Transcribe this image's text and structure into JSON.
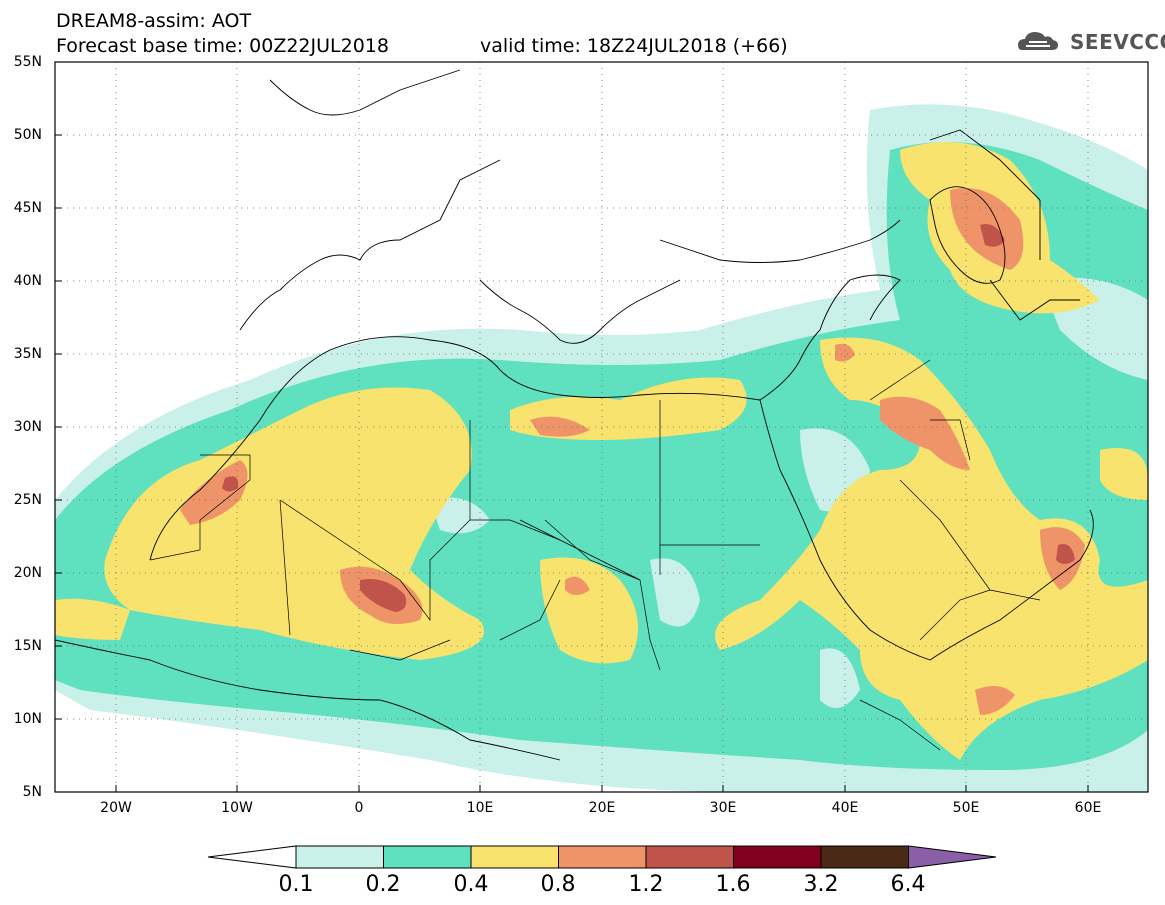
{
  "header": {
    "line1": "DREAM8-assim: AOT",
    "line2": "Forecast base time: 00Z22JUL2018",
    "valid": "valid time: 18Z24JUL2018 (+66)"
  },
  "logo": {
    "name": "SEEVCCC",
    "icon": "cloud-icon"
  },
  "map": {
    "lat_labels": [
      "55N",
      "50N",
      "45N",
      "40N",
      "35N",
      "30N",
      "25N",
      "20N",
      "15N",
      "10N",
      "5N"
    ],
    "lon_labels": [
      "20W",
      "10W",
      "0",
      "10E",
      "20E",
      "30E",
      "40E",
      "50E",
      "60E"
    ],
    "lon_range": [
      -25,
      65
    ],
    "lat_range": [
      5,
      55
    ]
  },
  "colorbar": {
    "labels": [
      "0.1",
      "0.2",
      "0.4",
      "0.8",
      "1.2",
      "1.6",
      "3.2",
      "6.4"
    ],
    "colors": [
      "#ffffff",
      "#c9f0e9",
      "#5fe0bf",
      "#f7e36e",
      "#ef9469",
      "#c1544a",
      "#80001e",
      "#4a2a16",
      "#8a5fa8"
    ]
  }
}
